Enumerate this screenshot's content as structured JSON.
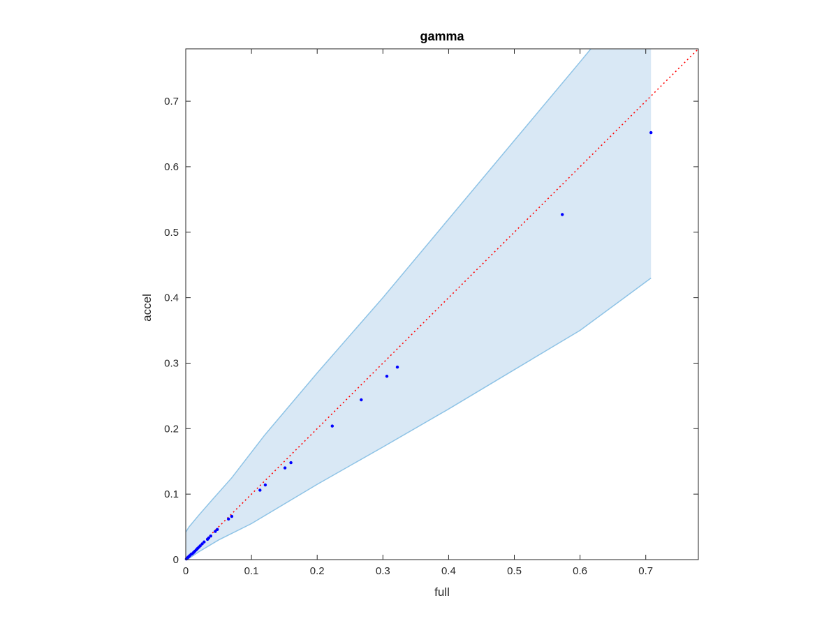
{
  "chart_data": {
    "type": "scatter",
    "title": "gamma",
    "xlabel": "full",
    "ylabel": "accel",
    "xlim": [
      0,
      0.78
    ],
    "ylim": [
      0,
      0.78
    ],
    "xticks": [
      0,
      0.1,
      0.2,
      0.3,
      0.4,
      0.5,
      0.6,
      0.7
    ],
    "yticks": [
      0,
      0.1,
      0.2,
      0.3,
      0.4,
      0.5,
      0.6,
      0.7
    ],
    "xtick_labels": [
      "0",
      "0.1",
      "0.2",
      "0.3",
      "0.4",
      "0.5",
      "0.6",
      "0.7"
    ],
    "ytick_labels": [
      "0",
      "0.1",
      "0.2",
      "0.3",
      "0.4",
      "0.5",
      "0.6",
      "0.7"
    ],
    "grid": false,
    "box": true,
    "points": [
      [
        0.001,
        0.001
      ],
      [
        0.002,
        0.002
      ],
      [
        0.003,
        0.003
      ],
      [
        0.004,
        0.004
      ],
      [
        0.005,
        0.005
      ],
      [
        0.006,
        0.006
      ],
      [
        0.008,
        0.008
      ],
      [
        0.01,
        0.009
      ],
      [
        0.012,
        0.011
      ],
      [
        0.014,
        0.013
      ],
      [
        0.016,
        0.015
      ],
      [
        0.018,
        0.017
      ],
      [
        0.02,
        0.019
      ],
      [
        0.022,
        0.021
      ],
      [
        0.025,
        0.024
      ],
      [
        0.028,
        0.027
      ],
      [
        0.033,
        0.031
      ],
      [
        0.035,
        0.033
      ],
      [
        0.038,
        0.036
      ],
      [
        0.045,
        0.043
      ],
      [
        0.048,
        0.046
      ],
      [
        0.065,
        0.062
      ],
      [
        0.07,
        0.066
      ],
      [
        0.113,
        0.106
      ],
      [
        0.121,
        0.114
      ],
      [
        0.151,
        0.14
      ],
      [
        0.16,
        0.148
      ],
      [
        0.223,
        0.204
      ],
      [
        0.267,
        0.244
      ],
      [
        0.306,
        0.28
      ],
      [
        0.322,
        0.294
      ],
      [
        0.573,
        0.527
      ],
      [
        0.708,
        0.652
      ]
    ],
    "band_upper": [
      [
        0,
        0.042
      ],
      [
        0.005,
        0.05
      ],
      [
        0.02,
        0.068
      ],
      [
        0.04,
        0.091
      ],
      [
        0.07,
        0.125
      ],
      [
        0.12,
        0.19
      ],
      [
        0.2,
        0.285
      ],
      [
        0.3,
        0.4
      ],
      [
        0.4,
        0.52
      ],
      [
        0.5,
        0.64
      ],
      [
        0.6,
        0.76
      ],
      [
        0.6165,
        0.78
      ],
      [
        0.708,
        0.78
      ]
    ],
    "band_lower": [
      [
        0.708,
        0.43
      ],
      [
        0.6,
        0.35
      ],
      [
        0.5,
        0.29
      ],
      [
        0.4,
        0.23
      ],
      [
        0.3,
        0.172
      ],
      [
        0.2,
        0.115
      ],
      [
        0.1,
        0.055
      ],
      [
        0.05,
        0.03
      ],
      [
        0.02,
        0.012
      ],
      [
        0.005,
        0.002
      ],
      [
        0,
        0
      ]
    ],
    "reference_line": [
      [
        0,
        0
      ],
      [
        0.78,
        0.78
      ]
    ],
    "colors": {
      "points": "#0000ff",
      "band_fill": "#d9e8f5",
      "band_edge": "#8ec3e6",
      "reference_line": "#ff0000",
      "axes": "#262626"
    }
  }
}
